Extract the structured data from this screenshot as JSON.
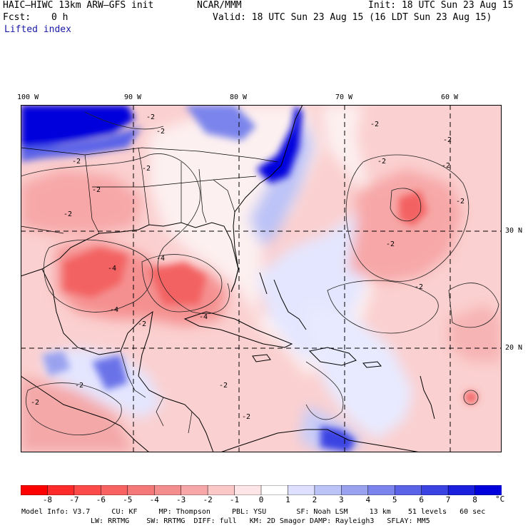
{
  "header": {
    "model": "HAIC–HIWC 13km ARW–GFS init",
    "org": "NCAR/MMM",
    "init": "Init: 18 UTC Sun 23 Aug 15",
    "fcst_label": "Fcst:",
    "fcst_value": "0 h",
    "valid": "Valid: 18 UTC Sun 23 Aug 15 (16 LDT Sun 23 Aug 15)",
    "field": "Lifted index"
  },
  "map": {
    "lon_labels": [
      "100 W",
      "90 W",
      "80 W",
      "70 W",
      "60 W"
    ],
    "lat_labels": [
      "30 N",
      "20 N"
    ],
    "contour_labels": [
      "-2",
      "-2",
      "-2",
      "-2",
      "-2",
      "-2",
      "-2",
      "-2",
      "-2",
      "-2",
      "-2",
      "-2",
      "-2",
      "-4",
      "-4",
      "-4",
      "-4",
      "-2",
      "-2",
      "-2",
      "-2",
      "-2"
    ],
    "colors": {
      "cold": "#0000dd",
      "warm": "#ee3b3b",
      "neutral": "#ffffff"
    }
  },
  "colorbar": {
    "values": [
      "-8",
      "-7",
      "-6",
      "-5",
      "-4",
      "-3",
      "-2",
      "-1",
      "0",
      "1",
      "2",
      "3",
      "4",
      "5",
      "6",
      "7",
      "8"
    ],
    "unit": "°C",
    "colors": [
      "#ff0000",
      "#ff2a2a",
      "#ff4a4a",
      "#f86262",
      "#f57878",
      "#f48d8d",
      "#f7a7a7",
      "#fbc8c8",
      "#ffe6e6",
      "#ffffff",
      "#dde0ff",
      "#bcc3f7",
      "#99a2ef",
      "#7a84ec",
      "#5a63e8",
      "#3a42e2",
      "#1a20de",
      "#0000dd"
    ]
  },
  "footer": {
    "line1": "Model Info: V3.7     CU: KF     MP: Thompson     PBL: YSU       SF: Noah LSM     13 km    51 levels   60 sec",
    "line2": "LW: RRTMG    SW: RRTMG  DIFF: full   KM: 2D Smagor DAMP: Rayleigh3   SFLAY: MM5"
  }
}
